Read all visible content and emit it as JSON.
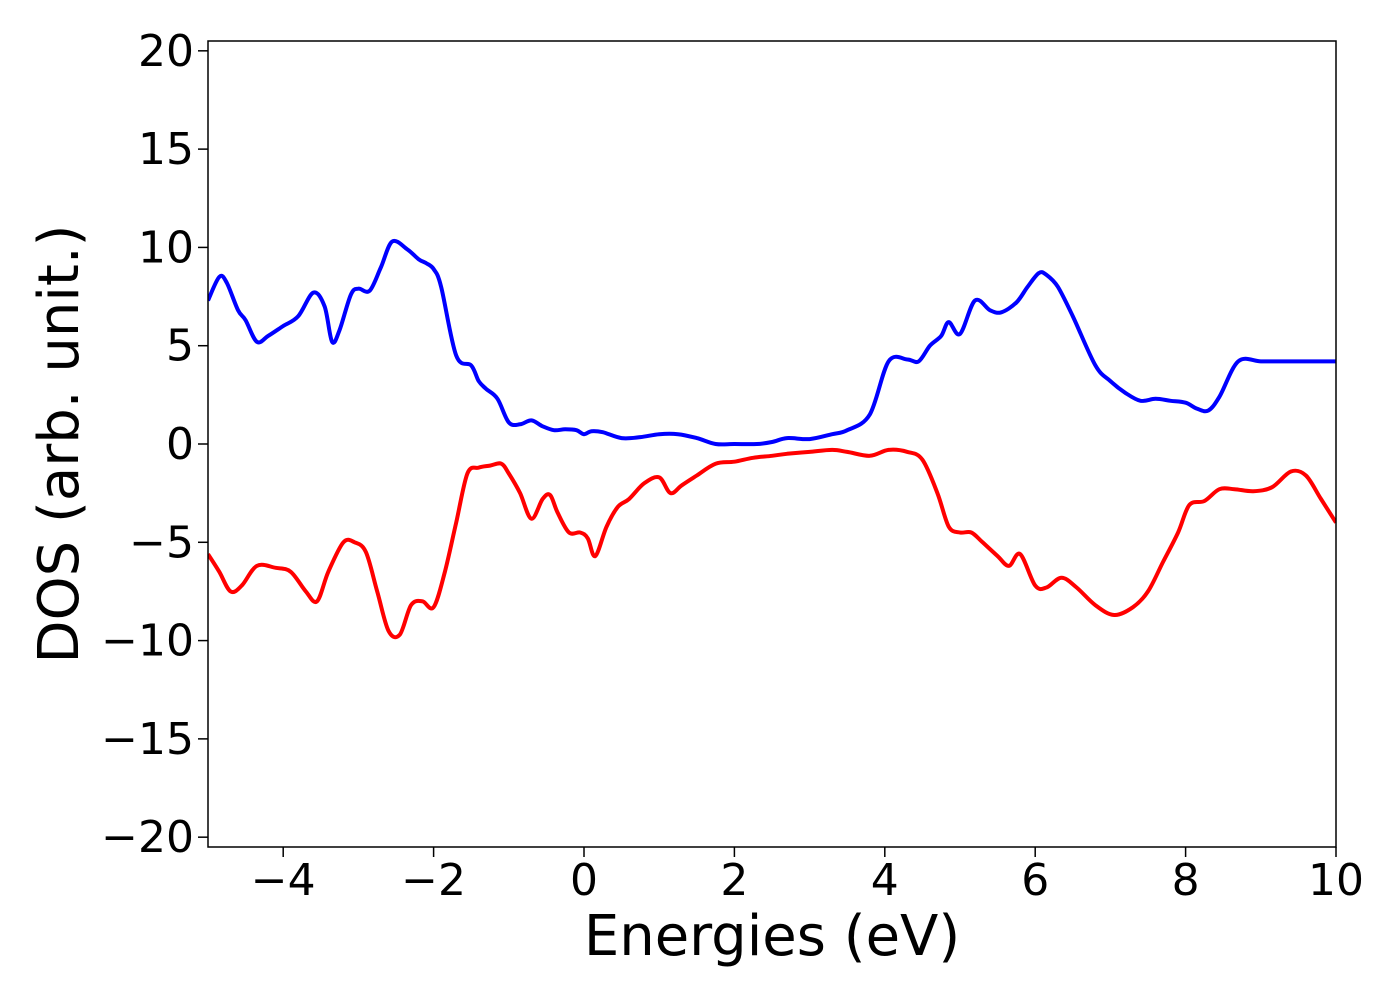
{
  "chart_data": {
    "type": "line",
    "title": "",
    "xlabel": "Energies (eV)",
    "ylabel": "DOS (arb. unit.)",
    "xlim": [
      -5,
      10
    ],
    "ylim": [
      -20.5,
      20.5
    ],
    "xticks": [
      -4,
      -2,
      0,
      2,
      4,
      6,
      8,
      10
    ],
    "xtick_labels": [
      "−4",
      "−2",
      "0",
      "2",
      "4",
      "6",
      "8",
      "10"
    ],
    "yticks": [
      -20,
      -15,
      -10,
      -5,
      0,
      5,
      10,
      15,
      20
    ],
    "ytick_labels": [
      "−20",
      "−15",
      "−10",
      "−5",
      "0",
      "5",
      "10",
      "15",
      "20"
    ],
    "grid": false,
    "legend": "none",
    "series": [
      {
        "color": "#0000ff",
        "x": [
          -5.0,
          -4.85,
          -4.75,
          -4.6,
          -4.5,
          -4.35,
          -4.2,
          -4.0,
          -3.8,
          -3.6,
          -3.45,
          -3.35,
          -3.25,
          -3.1,
          -3.0,
          -2.85,
          -2.7,
          -2.55,
          -2.35,
          -2.2,
          -2.1,
          -2.0,
          -1.9,
          -1.7,
          -1.5,
          -1.4,
          -1.3,
          -1.15,
          -1.0,
          -0.85,
          -0.7,
          -0.55,
          -0.4,
          -0.25,
          -0.1,
          0.0,
          0.1,
          0.25,
          0.5,
          0.75,
          1.0,
          1.25,
          1.5,
          1.75,
          2.0,
          2.3,
          2.5,
          2.7,
          3.0,
          3.3,
          3.5,
          3.8,
          4.05,
          4.3,
          4.45,
          4.6,
          4.75,
          4.85,
          5.0,
          5.2,
          5.4,
          5.55,
          5.75,
          5.9,
          6.05,
          6.15,
          6.3,
          6.5,
          6.8,
          7.0,
          7.2,
          7.4,
          7.6,
          7.8,
          8.0,
          8.15,
          8.3,
          8.45,
          8.7,
          9.0,
          9.3,
          9.5,
          9.8,
          10.0
        ],
        "values": [
          7.3,
          8.5,
          8.2,
          6.8,
          6.3,
          5.2,
          5.5,
          6.0,
          6.5,
          7.7,
          7.0,
          5.2,
          5.8,
          7.6,
          7.9,
          7.8,
          9.0,
          10.3,
          9.9,
          9.4,
          9.2,
          8.9,
          8.0,
          4.5,
          4.0,
          3.2,
          2.8,
          2.3,
          1.1,
          1.0,
          1.2,
          0.9,
          0.7,
          0.75,
          0.7,
          0.5,
          0.65,
          0.6,
          0.3,
          0.35,
          0.5,
          0.5,
          0.3,
          0.0,
          0.0,
          0.0,
          0.1,
          0.3,
          0.25,
          0.5,
          0.7,
          1.5,
          4.2,
          4.3,
          4.2,
          5.0,
          5.5,
          6.2,
          5.6,
          7.3,
          6.8,
          6.7,
          7.2,
          8.0,
          8.7,
          8.6,
          8.0,
          6.5,
          4.0,
          3.2,
          2.6,
          2.2,
          2.3,
          2.2,
          2.1,
          1.8,
          1.7,
          2.4,
          4.2,
          4.2,
          4.2,
          4.2,
          4.2,
          4.2
        ]
      },
      {
        "color": "#ff0000",
        "x": [
          -5.0,
          -4.85,
          -4.7,
          -4.55,
          -4.35,
          -4.1,
          -3.9,
          -3.7,
          -3.55,
          -3.4,
          -3.2,
          -3.05,
          -2.9,
          -2.75,
          -2.6,
          -2.45,
          -2.3,
          -2.15,
          -2.0,
          -1.85,
          -1.7,
          -1.55,
          -1.4,
          -1.25,
          -1.1,
          -1.0,
          -0.85,
          -0.7,
          -0.55,
          -0.45,
          -0.35,
          -0.2,
          -0.05,
          0.05,
          0.15,
          0.3,
          0.45,
          0.6,
          0.8,
          1.0,
          1.15,
          1.3,
          1.5,
          1.75,
          2.0,
          2.25,
          2.5,
          2.7,
          3.0,
          3.3,
          3.5,
          3.8,
          4.05,
          4.3,
          4.5,
          4.7,
          4.85,
          5.0,
          5.15,
          5.3,
          5.5,
          5.65,
          5.8,
          6.0,
          6.15,
          6.35,
          6.55,
          6.8,
          7.05,
          7.3,
          7.5,
          7.7,
          7.9,
          8.05,
          8.25,
          8.45,
          8.65,
          8.9,
          9.15,
          9.4,
          9.6,
          9.8,
          10.0
        ],
        "values": [
          -5.6,
          -6.5,
          -7.5,
          -7.2,
          -6.2,
          -6.3,
          -6.5,
          -7.5,
          -8.0,
          -6.5,
          -5.0,
          -5.0,
          -5.5,
          -7.5,
          -9.5,
          -9.7,
          -8.2,
          -8.0,
          -8.3,
          -6.5,
          -4.0,
          -1.5,
          -1.2,
          -1.1,
          -1.0,
          -1.5,
          -2.5,
          -3.8,
          -2.8,
          -2.6,
          -3.5,
          -4.5,
          -4.5,
          -4.8,
          -5.7,
          -4.2,
          -3.2,
          -2.8,
          -2.0,
          -1.7,
          -2.5,
          -2.1,
          -1.6,
          -1.0,
          -0.9,
          -0.7,
          -0.6,
          -0.5,
          -0.4,
          -0.3,
          -0.4,
          -0.6,
          -0.3,
          -0.4,
          -0.8,
          -2.5,
          -4.2,
          -4.5,
          -4.5,
          -5.0,
          -5.7,
          -6.2,
          -5.6,
          -7.2,
          -7.3,
          -6.8,
          -7.3,
          -8.2,
          -8.7,
          -8.3,
          -7.5,
          -6.0,
          -4.5,
          -3.1,
          -2.9,
          -2.3,
          -2.3,
          -2.4,
          -2.2,
          -1.4,
          -1.6,
          -2.8,
          -4.0
        ]
      }
    ]
  }
}
